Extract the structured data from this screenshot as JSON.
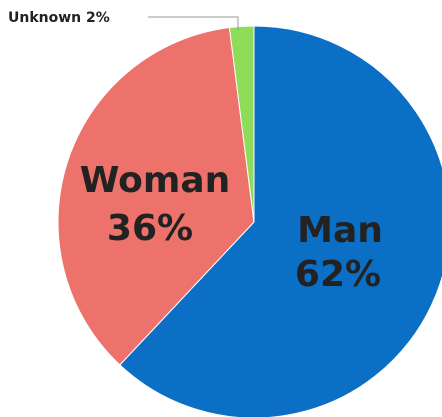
{
  "chart_data": {
    "type": "pie",
    "slices": [
      {
        "label": "Man",
        "value": 62,
        "value_text": "62%",
        "color": "#0b6fc6"
      },
      {
        "label": "Woman",
        "value": 36,
        "value_text": "36%",
        "color": "#ee726c"
      },
      {
        "label": "Unknown",
        "value": 2,
        "value_text": "2%",
        "color": "#8fdc5a"
      }
    ],
    "start": "12 o'clock",
    "direction": "clockwise",
    "callout_label": "Unknown 2%"
  }
}
